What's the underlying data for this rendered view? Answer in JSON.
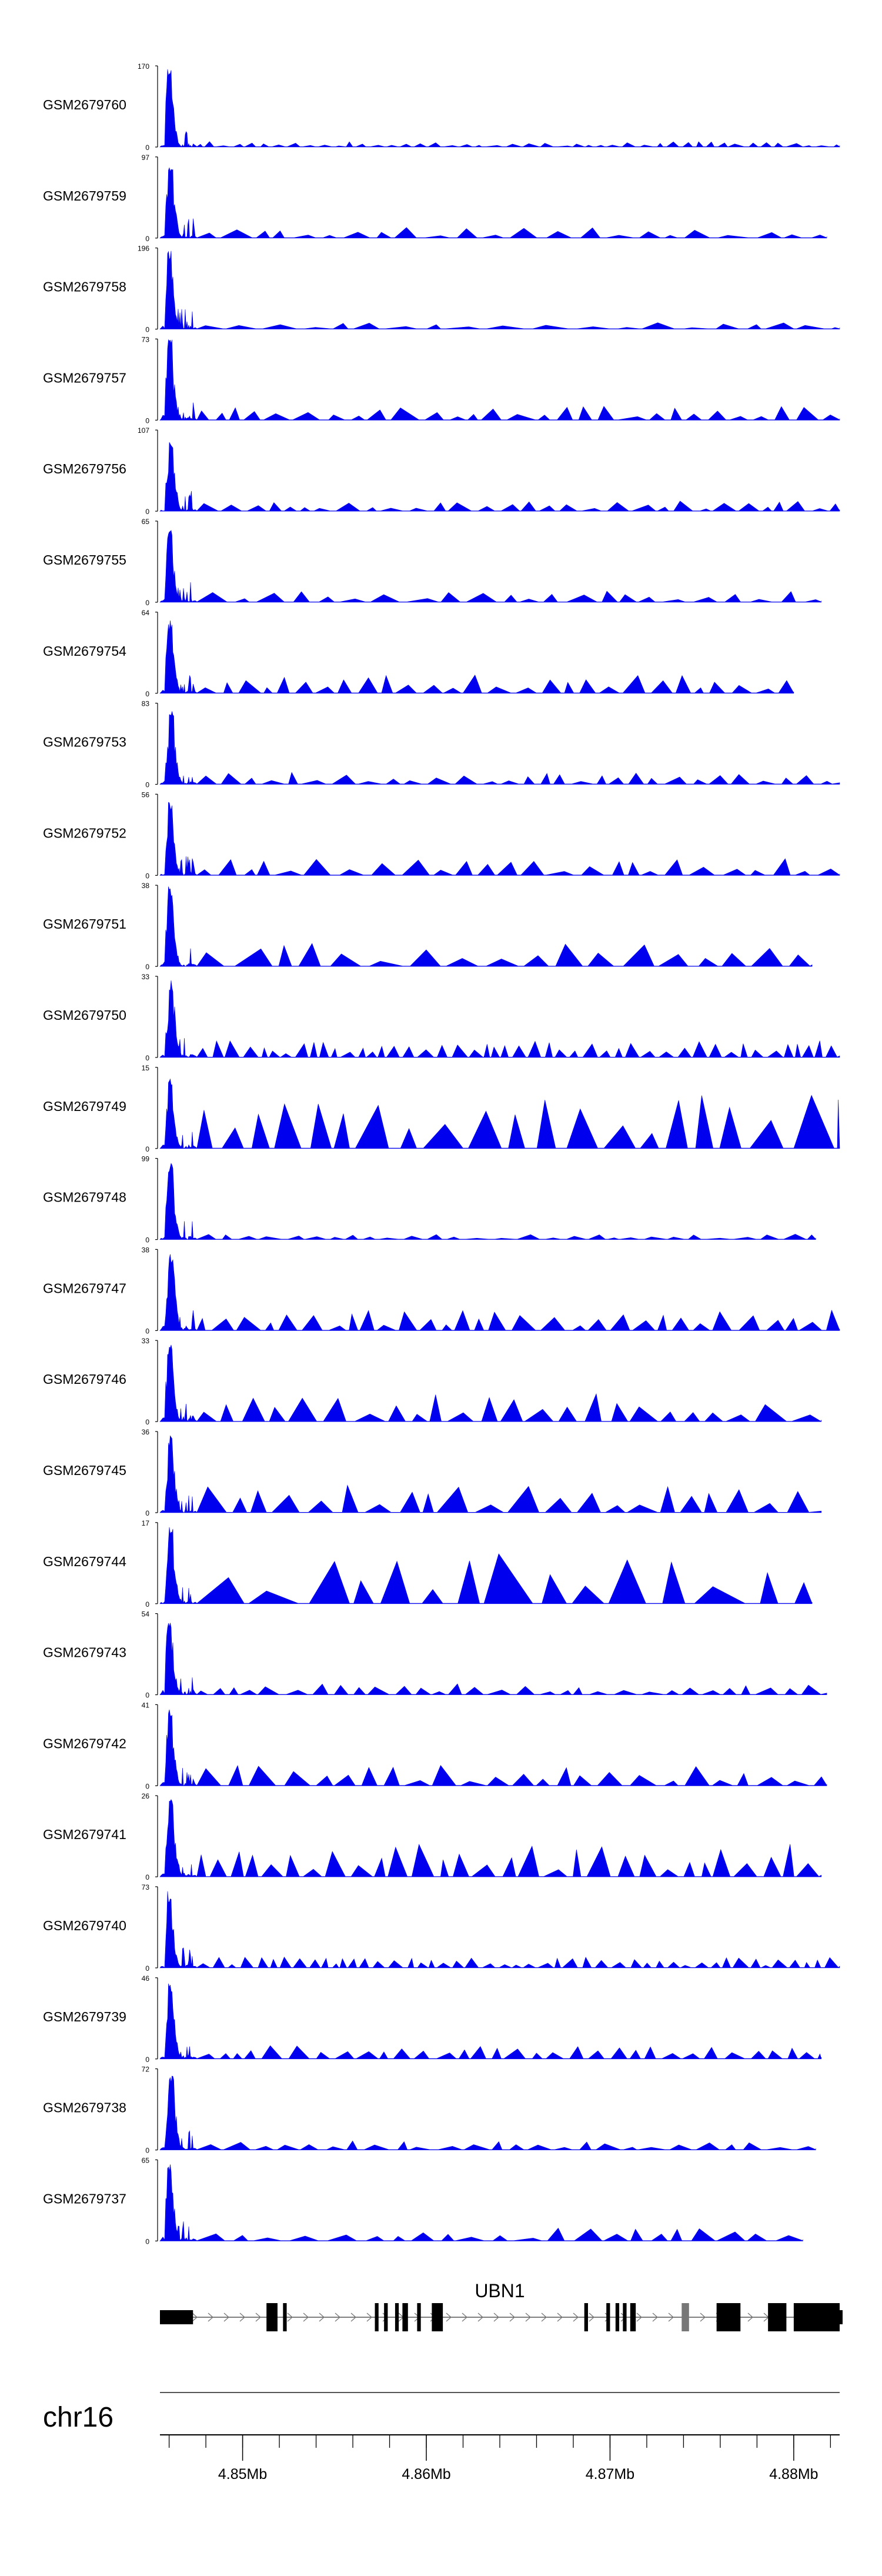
{
  "chart_data": {
    "type": "area",
    "title": "",
    "chromosome": "chr16",
    "colors": {
      "coverage": "#0000ee",
      "gene": "#000000",
      "exon_highlight": "#777777",
      "axis": "#000000"
    },
    "x_range": [
      4.8455,
      4.8825
    ],
    "x_unit": "Mb",
    "x_ticks": [
      {
        "value": 4.85,
        "label": "4.85Mb"
      },
      {
        "value": 4.86,
        "label": "4.86Mb"
      },
      {
        "value": 4.87,
        "label": "4.87Mb"
      },
      {
        "value": 4.88,
        "label": "4.88Mb"
      }
    ],
    "minor_tick_step": 0.002,
    "tracks": [
      {
        "name": "GSM2679760",
        "ymax": 170,
        "ymin": 0,
        "seed": 11,
        "peak_rel": 1.0,
        "bg": 0.06,
        "bg_n": 60,
        "end": 4.8825
      },
      {
        "name": "GSM2679759",
        "ymax": 97,
        "ymin": 0,
        "seed": 23,
        "peak_rel": 0.95,
        "bg": 0.12,
        "bg_n": 30,
        "end": 4.8818
      },
      {
        "name": "GSM2679758",
        "ymax": 196,
        "ymin": 0,
        "seed": 37,
        "peak_rel": 1.0,
        "bg": 0.07,
        "bg_n": 26,
        "end": 4.8825
      },
      {
        "name": "GSM2679757",
        "ymax": 73,
        "ymin": 0,
        "seed": 41,
        "peak_rel": 1.0,
        "bg": 0.15,
        "bg_n": 34,
        "end": 4.8825
      },
      {
        "name": "GSM2679756",
        "ymax": 107,
        "ymin": 0,
        "seed": 53,
        "peak_rel": 0.9,
        "bg": 0.11,
        "bg_n": 40,
        "end": 4.8825
      },
      {
        "name": "GSM2679755",
        "ymax": 65,
        "ymin": 0,
        "seed": 67,
        "peak_rel": 0.92,
        "bg": 0.12,
        "bg_n": 30,
        "end": 4.8815
      },
      {
        "name": "GSM2679754",
        "ymax": 64,
        "ymin": 0,
        "seed": 71,
        "peak_rel": 0.9,
        "bg": 0.2,
        "bg_n": 38,
        "end": 4.88
      },
      {
        "name": "GSM2679753",
        "ymax": 83,
        "ymin": 0,
        "seed": 89,
        "peak_rel": 0.9,
        "bg": 0.13,
        "bg_n": 40,
        "end": 4.8825
      },
      {
        "name": "GSM2679752",
        "ymax": 56,
        "ymin": 0,
        "seed": 97,
        "peak_rel": 0.92,
        "bg": 0.18,
        "bg_n": 34,
        "end": 4.8825
      },
      {
        "name": "GSM2679751",
        "ymax": 38,
        "ymin": 0,
        "seed": 101,
        "peak_rel": 1.0,
        "bg": 0.25,
        "bg_n": 24,
        "end": 4.881
      },
      {
        "name": "GSM2679750",
        "ymax": 33,
        "ymin": 0,
        "seed": 113,
        "peak_rel": 0.95,
        "bg": 0.18,
        "bg_n": 60,
        "end": 4.8825
      },
      {
        "name": "GSM2679749",
        "ymax": 15,
        "ymin": 0,
        "seed": 127,
        "peak_rel": 0.9,
        "bg": 0.65,
        "bg_n": 24,
        "end": 4.8825
      },
      {
        "name": "GSM2679748",
        "ymax": 99,
        "ymin": 0,
        "seed": 131,
        "peak_rel": 0.95,
        "bg": 0.06,
        "bg_n": 40,
        "end": 4.8812
      },
      {
        "name": "GSM2679747",
        "ymax": 38,
        "ymin": 0,
        "seed": 139,
        "peak_rel": 0.95,
        "bg": 0.22,
        "bg_n": 40,
        "end": 4.8825
      },
      {
        "name": "GSM2679746",
        "ymax": 33,
        "ymin": 0,
        "seed": 149,
        "peak_rel": 0.95,
        "bg": 0.3,
        "bg_n": 30,
        "end": 4.8815
      },
      {
        "name": "GSM2679745",
        "ymax": 36,
        "ymin": 0,
        "seed": 157,
        "peak_rel": 0.95,
        "bg": 0.3,
        "bg_n": 30,
        "end": 4.8815
      },
      {
        "name": "GSM2679744",
        "ymax": 17,
        "ymin": 0,
        "seed": 163,
        "peak_rel": 0.95,
        "bg": 0.55,
        "bg_n": 18,
        "end": 4.881
      },
      {
        "name": "GSM2679743",
        "ymax": 54,
        "ymin": 0,
        "seed": 173,
        "peak_rel": 0.95,
        "bg": 0.12,
        "bg_n": 40,
        "end": 4.8818
      },
      {
        "name": "GSM2679742",
        "ymax": 41,
        "ymin": 0,
        "seed": 181,
        "peak_rel": 0.95,
        "bg": 0.22,
        "bg_n": 34,
        "end": 4.8818
      },
      {
        "name": "GSM2679741",
        "ymax": 26,
        "ymin": 0,
        "seed": 191,
        "peak_rel": 1.0,
        "bg": 0.35,
        "bg_n": 40,
        "end": 4.8815
      },
      {
        "name": "GSM2679740",
        "ymax": 73,
        "ymin": 0,
        "seed": 199,
        "peak_rel": 0.95,
        "bg": 0.12,
        "bg_n": 60,
        "end": 4.8825
      },
      {
        "name": "GSM2679739",
        "ymax": 46,
        "ymin": 0,
        "seed": 211,
        "peak_rel": 0.95,
        "bg": 0.15,
        "bg_n": 40,
        "end": 4.8815
      },
      {
        "name": "GSM2679738",
        "ymax": 72,
        "ymin": 0,
        "seed": 223,
        "peak_rel": 0.95,
        "bg": 0.1,
        "bg_n": 34,
        "end": 4.8812
      },
      {
        "name": "GSM2679737",
        "ymax": 65,
        "ymin": 0,
        "seed": 227,
        "peak_rel": 0.95,
        "bg": 0.14,
        "bg_n": 30,
        "end": 4.8805
      }
    ],
    "gene": {
      "name": "UBN1",
      "start": 4.8455,
      "end": 4.8825,
      "strand": "+",
      "exons": [
        [
          4.8455,
          4.8473
        ],
        [
          4.8513,
          4.8519
        ],
        [
          4.8522,
          4.8524
        ],
        [
          4.8572,
          4.8574
        ],
        [
          4.8577,
          4.8579
        ],
        [
          4.8583,
          4.8585
        ],
        [
          4.8587,
          4.859
        ],
        [
          4.8595,
          4.8597
        ],
        [
          4.8603,
          4.8609
        ],
        [
          4.8686,
          4.8688
        ],
        [
          4.8698,
          4.87
        ],
        [
          4.8703,
          4.8705
        ],
        [
          4.8707,
          4.8709
        ],
        [
          4.8711,
          4.8714
        ],
        [
          4.8739,
          4.8743
        ],
        [
          4.8758,
          4.8771
        ],
        [
          4.8786,
          4.8796
        ],
        [
          4.88,
          4.8806
        ],
        [
          4.881,
          4.8816
        ],
        [
          4.8825,
          4.8825
        ]
      ],
      "highlight_exon": 14,
      "utr_end": [
        4.8801,
        4.8825
      ]
    }
  }
}
